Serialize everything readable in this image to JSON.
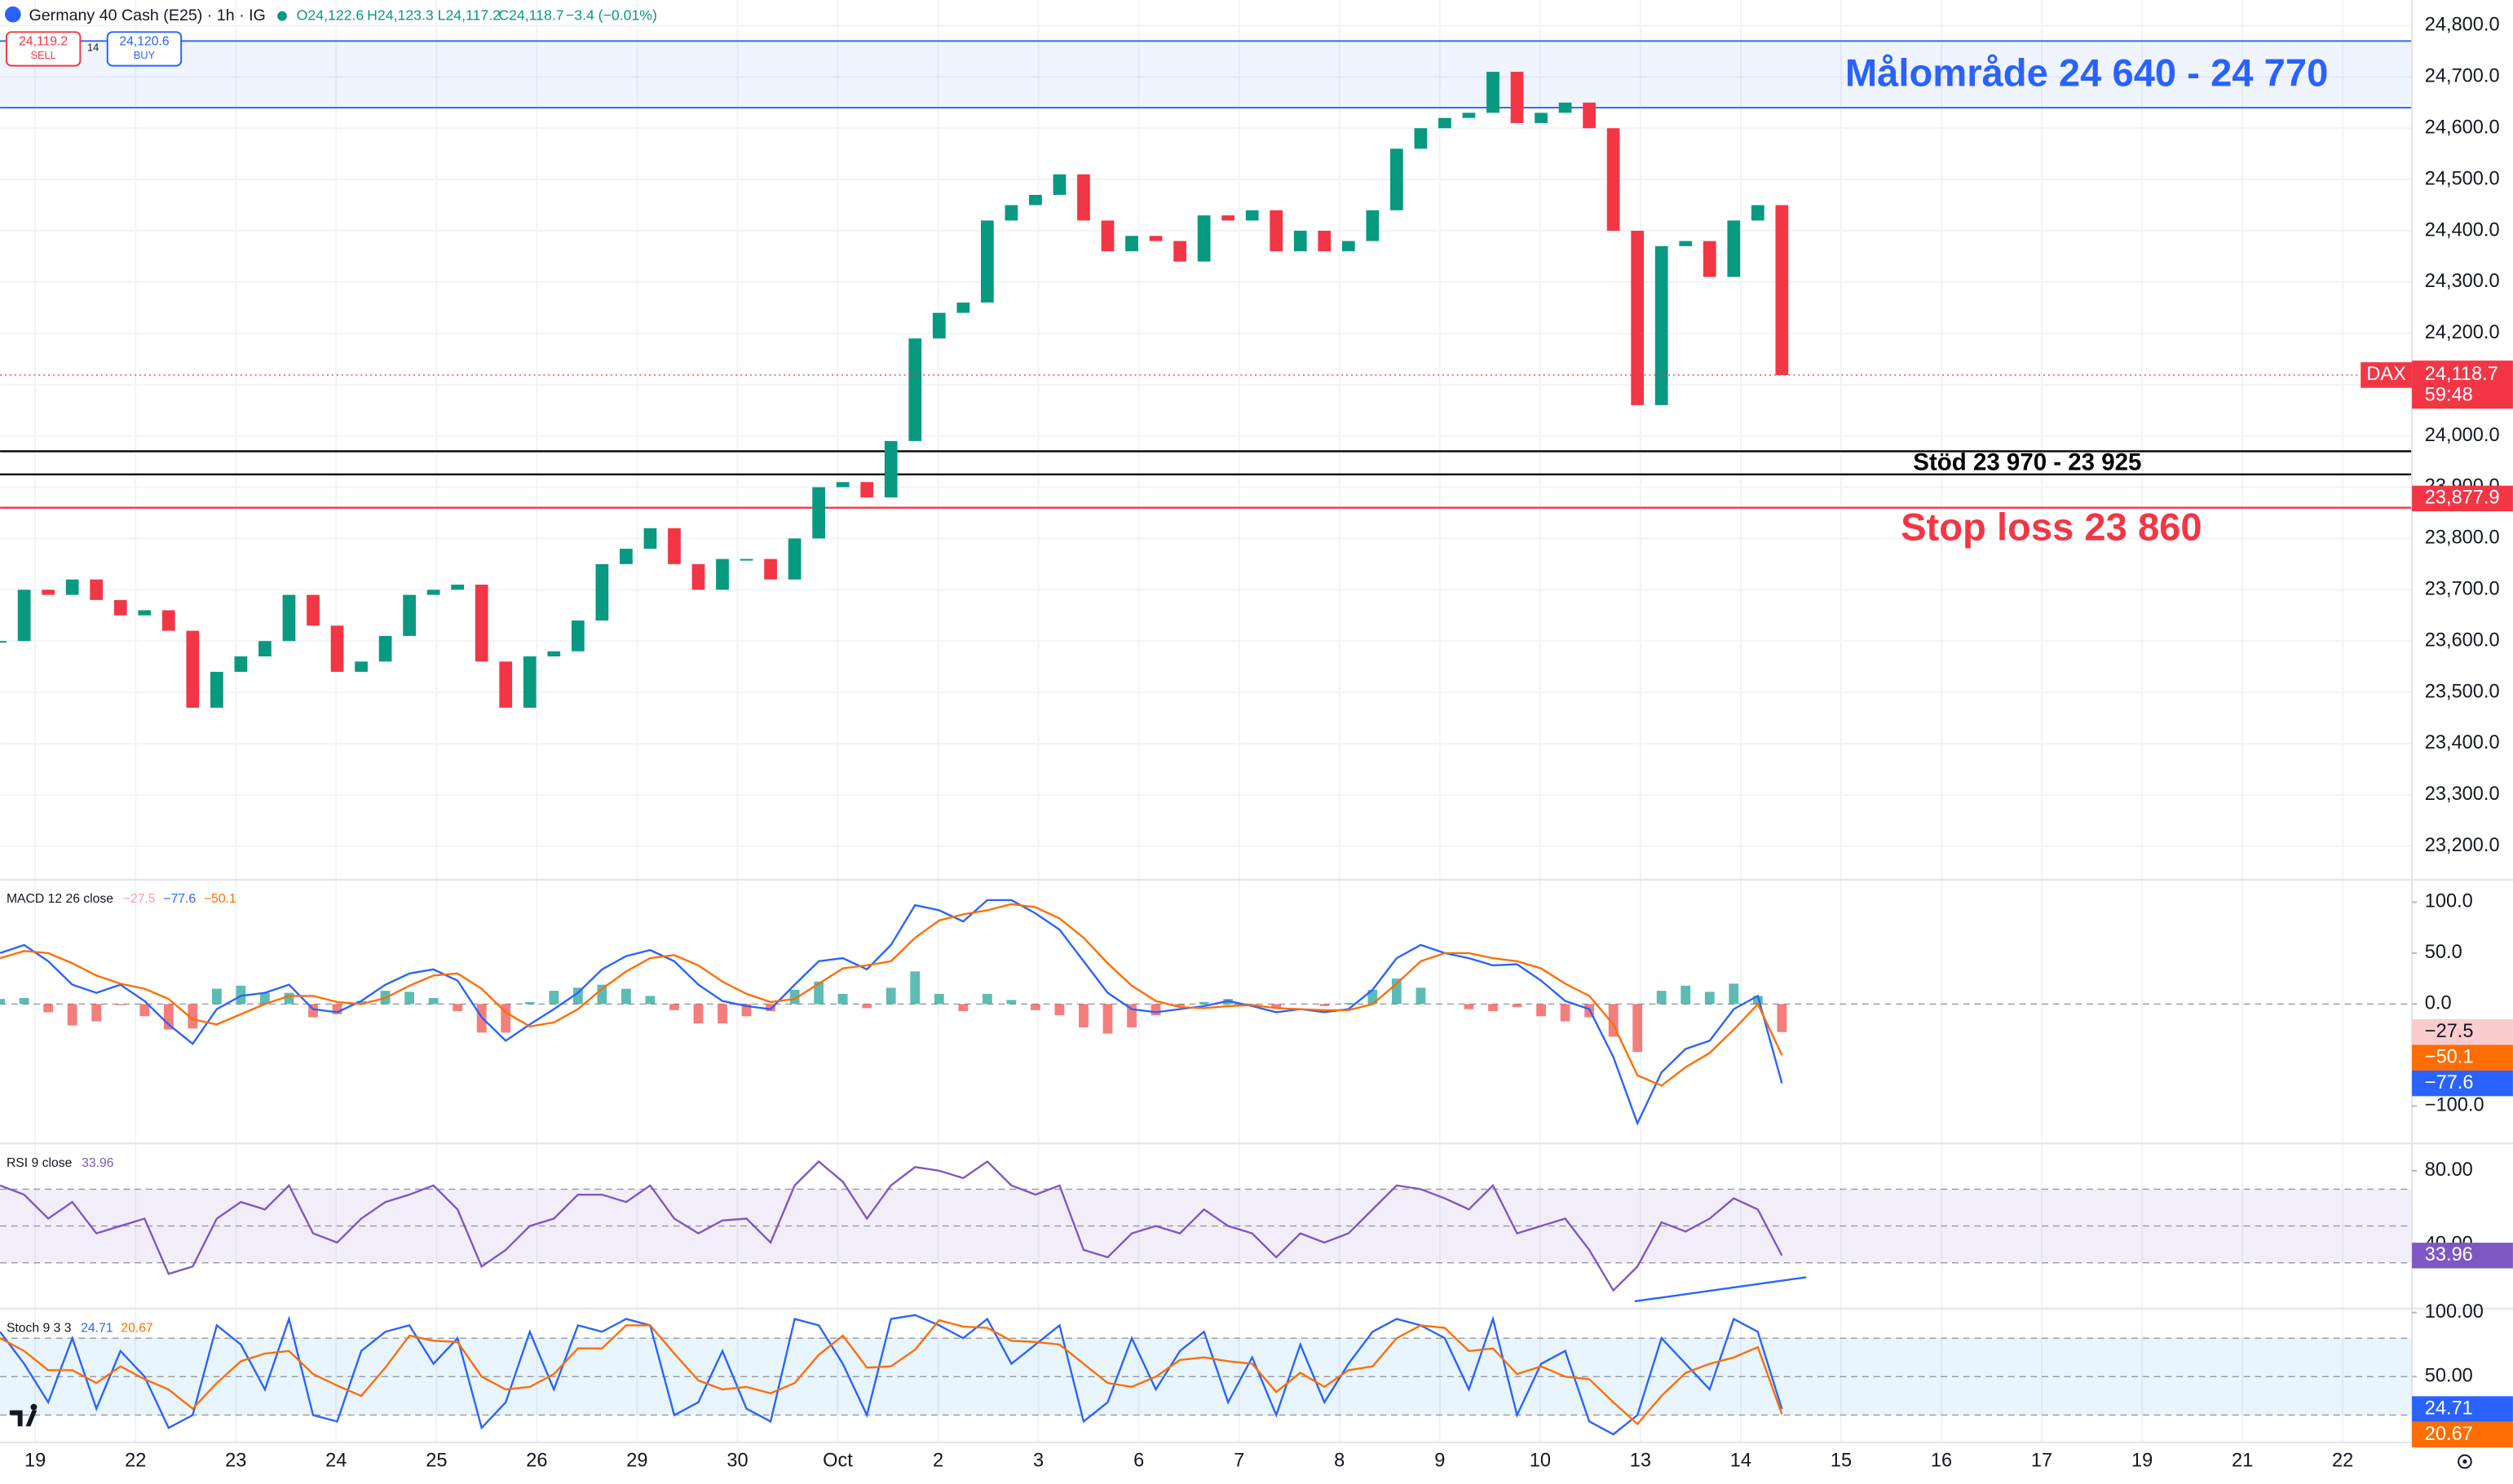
{
  "header": {
    "title": "Germany 40 Cash (E25) · 1h · IG",
    "ohlc": [
      "O24,122.6",
      "H24,123.3",
      "L24,117.2",
      "C24,118.7",
      "−3.4 (−0.01%)"
    ],
    "sell_price": "24,119.2",
    "sell": "SELL",
    "spread": "14",
    "buy_price": "24,120.6",
    "buy": "BUY"
  },
  "chart_data": [
    {
      "type": "candlestick",
      "colors": {
        "up": "#089981",
        "down": "#f23645"
      },
      "grid": true,
      "xlim": [
        -0.35,
        23.69
      ],
      "xticks": [
        {
          "value": 0,
          "label": "19"
        },
        {
          "value": 1,
          "label": "22"
        },
        {
          "value": 2,
          "label": "23"
        },
        {
          "value": 3,
          "label": "24"
        },
        {
          "value": 4,
          "label": "25"
        },
        {
          "value": 5,
          "label": "26"
        },
        {
          "value": 6,
          "label": "29"
        },
        {
          "value": 7,
          "label": "30"
        },
        {
          "value": 8,
          "label": "Oct"
        },
        {
          "value": 9,
          "label": "2"
        },
        {
          "value": 10,
          "label": "3"
        },
        {
          "value": 11,
          "label": "6"
        },
        {
          "value": 12,
          "label": "7"
        },
        {
          "value": 13,
          "label": "8"
        },
        {
          "value": 14,
          "label": "9"
        },
        {
          "value": 15,
          "label": "10"
        },
        {
          "value": 16,
          "label": "13"
        },
        {
          "value": 17,
          "label": "14"
        },
        {
          "value": 18,
          "label": "15"
        },
        {
          "value": 19,
          "label": "16"
        },
        {
          "value": 20,
          "label": "17"
        },
        {
          "value": 21,
          "label": "19"
        },
        {
          "value": 22,
          "label": "21"
        },
        {
          "value": 23,
          "label": "22"
        }
      ],
      "x": [
        -0.35,
        -0.11,
        0.13,
        0.37,
        0.61,
        0.85,
        1.09,
        1.33,
        1.57,
        1.81,
        2.05,
        2.29,
        2.53,
        2.77,
        3.01,
        3.25,
        3.49,
        3.73,
        3.97,
        4.21,
        4.45,
        4.69,
        4.93,
        5.17,
        5.41,
        5.65,
        5.89,
        6.13,
        6.37,
        6.61,
        6.85,
        7.09,
        7.33,
        7.57,
        7.81,
        8.05,
        8.29,
        8.53,
        8.77,
        9.01,
        9.25,
        9.49,
        9.73,
        9.97,
        10.21,
        10.45,
        10.69,
        10.93,
        11.17,
        11.41,
        11.65,
        11.89,
        12.13,
        12.37,
        12.61,
        12.85,
        13.09,
        13.33,
        13.57,
        13.81,
        14.05,
        14.29,
        14.53,
        14.77,
        15.01,
        15.25,
        15.49,
        15.73,
        15.97,
        16.21,
        16.45,
        16.69,
        16.93,
        17.17,
        17.41
      ],
      "values": [
        23600,
        23700,
        23690,
        23720,
        23680,
        23650,
        23660,
        23620,
        23470,
        23540,
        23570,
        23600,
        23690,
        23630,
        23540,
        23560,
        23610,
        23690,
        23700,
        23710,
        23560,
        23470,
        23570,
        23580,
        23640,
        23750,
        23780,
        23820,
        23750,
        23700,
        23760,
        23760,
        23720,
        23800,
        23900,
        23910,
        23880,
        23990,
        24190,
        24240,
        24260,
        24420,
        24450,
        24470,
        24510,
        24420,
        24360,
        24390,
        24380,
        24340,
        24430,
        24420,
        24440,
        24360,
        24400,
        24360,
        24380,
        24440,
        24560,
        24600,
        24620,
        24630,
        24710,
        24610,
        24630,
        24650,
        24600,
        24400,
        24060,
        24370,
        24380,
        24310,
        24420,
        24450,
        24118.7
      ],
      "ylim": [
        23140,
        24850
      ],
      "yticks": [
        {
          "value": 24800,
          "label": "24,800.0"
        },
        {
          "value": 24700,
          "label": "24,700.0"
        },
        {
          "value": 24600,
          "label": "24,600.0"
        },
        {
          "value": 24500,
          "label": "24,500.0"
        },
        {
          "value": 24400,
          "label": "24,400.0"
        },
        {
          "value": 24300,
          "label": "24,300.0"
        },
        {
          "value": 24200,
          "label": "24,200.0"
        },
        {
          "value": 24100,
          "label": "24,100.0"
        },
        {
          "value": 24000,
          "label": "24,000.0"
        },
        {
          "value": 23900,
          "label": "23,900.0"
        },
        {
          "value": 23800,
          "label": "23,800.0"
        },
        {
          "value": 23700,
          "label": "23,700.0"
        },
        {
          "value": 23600,
          "label": "23,600.0"
        },
        {
          "value": 23500,
          "label": "23,500.0"
        },
        {
          "value": 23400,
          "label": "23,400.0"
        },
        {
          "value": 23300,
          "label": "23,300.0"
        },
        {
          "value": 23200,
          "label": "23,200.0"
        }
      ],
      "zones": [
        {
          "label": "Målområde 24 640 - 24 770",
          "values": [
            24640,
            24770
          ],
          "color": "#2962ff"
        }
      ],
      "levels": [
        {
          "label": "Stöd 23 970 - 23 925",
          "values": [
            23970,
            23925
          ],
          "color": "#000000"
        },
        {
          "label": "Stop loss 23 860",
          "values": [
            23860
          ],
          "color": "#f23645"
        }
      ],
      "price_tags": [
        {
          "name": "DAX",
          "value": 24118.7,
          "label": "24,118.7",
          "countdown": "59:48",
          "color": "#f23645"
        },
        {
          "value": 23877.9,
          "label": "23,877.9",
          "color": "#f23645"
        }
      ]
    },
    {
      "type": "macd",
      "title": "MACD 12 26 close",
      "ylim": [
        -134.4,
        120.3
      ],
      "yticks": [
        {
          "value": 100,
          "label": "100.0"
        },
        {
          "value": 50,
          "label": "50.0"
        },
        {
          "value": 0,
          "label": "0.0"
        },
        {
          "value": -100,
          "label": "−100.0"
        }
      ],
      "histogram": {
        "color_up": "#26a69a",
        "color_down": "#ef5350",
        "tag_color": "#fccbcd",
        "last_label": "−27.5",
        "values": [
          5,
          6,
          -8,
          -21,
          -17,
          -1,
          -12,
          -25,
          -24,
          15,
          18,
          11,
          11,
          -13,
          -10,
          3,
          13,
          12,
          6,
          -7,
          -28,
          -28,
          2,
          13,
          16,
          19,
          15,
          8,
          -6,
          -19,
          -19,
          -12,
          -7,
          14,
          22,
          10,
          -4,
          16,
          32,
          10,
          -7,
          10,
          4,
          -6,
          -11,
          -23,
          -29,
          -23,
          -11,
          -2,
          2,
          5,
          -1,
          -4,
          0,
          -2,
          1,
          14,
          25,
          16,
          0,
          -5,
          -7,
          -3,
          -12,
          -17,
          -13,
          -32,
          -47,
          13,
          18,
          12,
          20,
          8,
          -27.5
        ]
      },
      "series": [
        {
          "color": "#2962ff",
          "last_label": "−77.6",
          "values": [
            50,
            58,
            42,
            19,
            11,
            19,
            3,
            -20,
            -39,
            -5,
            8,
            11,
            19,
            -5,
            -8,
            3,
            19,
            30,
            34,
            23,
            -13,
            -36,
            -20,
            -5,
            11,
            34,
            47,
            53,
            42,
            19,
            3,
            -2,
            -5,
            19,
            42,
            45,
            34,
            58,
            97,
            92,
            81,
            102,
            102,
            89,
            73,
            42,
            11,
            -5,
            -8,
            -5,
            -2,
            3,
            -2,
            -8,
            -5,
            -8,
            -5,
            14,
            45,
            58,
            50,
            45,
            38,
            39,
            23,
            3,
            -5,
            -52,
            -117,
            -67,
            -44,
            -36,
            -5,
            8,
            -77.6
          ]
        },
        {
          "color": "#ff6d00",
          "last_label": "−50.1",
          "values": [
            45,
            52,
            50,
            40,
            28,
            20,
            15,
            5,
            -15,
            -20,
            -10,
            0,
            8,
            8,
            2,
            0,
            6,
            18,
            28,
            30,
            15,
            -8,
            -22,
            -18,
            -5,
            15,
            32,
            45,
            48,
            38,
            22,
            10,
            2,
            5,
            20,
            35,
            38,
            42,
            65,
            82,
            88,
            92,
            98,
            95,
            84,
            65,
            40,
            18,
            3,
            -3,
            -4,
            -2,
            -1,
            -4,
            -5,
            -6,
            -6,
            0,
            20,
            42,
            50,
            50,
            45,
            42,
            35,
            20,
            8,
            -20,
            -70,
            -80,
            -62,
            -48,
            -25,
            0,
            -50.1
          ]
        }
      ]
    },
    {
      "type": "rsi",
      "title": "RSI 9 close",
      "ylim": [
        6.5,
        93.5
      ],
      "yticks": [
        {
          "value": 80,
          "label": "80.00"
        },
        {
          "value": 40,
          "label": "40.00"
        }
      ],
      "bands": [
        30,
        70
      ],
      "band_color": "#7e57c2",
      "midline": 50,
      "series": [
        {
          "color": "#7e57c2",
          "last_label": "33.96",
          "values": [
            72,
            67,
            54,
            63,
            46,
            50,
            54,
            24,
            28,
            54,
            63,
            59,
            72,
            46,
            41,
            54,
            63,
            67,
            72,
            59,
            28,
            37,
            50,
            54,
            67,
            67,
            63,
            72,
            54,
            46,
            53,
            54,
            41,
            72,
            85,
            74,
            54,
            72,
            82,
            80,
            76,
            85,
            72,
            67,
            72,
            37,
            33,
            46,
            50,
            46,
            59,
            50,
            46,
            33,
            46,
            41,
            46,
            59,
            72,
            70,
            65,
            59,
            72,
            46,
            50,
            54,
            37,
            15,
            28,
            52,
            47,
            54,
            65,
            59,
            33.96
          ]
        }
      ]
    },
    {
      "type": "stoch",
      "title": "Stoch 9 3 3",
      "ylim": [
        -1.25,
        101.25
      ],
      "yticks": [
        {
          "value": 100,
          "label": "100.00"
        },
        {
          "value": 50,
          "label": "50.00"
        }
      ],
      "bands": [
        20,
        80
      ],
      "band_color": "#2196f3",
      "midline": 50,
      "series": [
        {
          "color": "#2962ff",
          "last_label": "24.71",
          "values": [
            85,
            60,
            30,
            80,
            25,
            70,
            50,
            10,
            20,
            90,
            75,
            40,
            95,
            20,
            15,
            70,
            85,
            90,
            60,
            80,
            10,
            30,
            85,
            40,
            90,
            85,
            95,
            90,
            20,
            30,
            70,
            25,
            15,
            95,
            90,
            60,
            20,
            95,
            98,
            90,
            80,
            95,
            60,
            75,
            90,
            15,
            30,
            80,
            40,
            70,
            85,
            30,
            65,
            20,
            75,
            30,
            60,
            85,
            95,
            90,
            80,
            40,
            95,
            20,
            60,
            70,
            15,
            5,
            20,
            80,
            60,
            40,
            95,
            85,
            24.71
          ]
        },
        {
          "color": "#ff6d00",
          "last_label": "20.67",
          "values": [
            80,
            70,
            55,
            55,
            45,
            58,
            48,
            40,
            25,
            45,
            62,
            68,
            70,
            52,
            43,
            35,
            57,
            82,
            78,
            77,
            50,
            40,
            42,
            52,
            72,
            72,
            90,
            90,
            68,
            47,
            40,
            42,
            37,
            45,
            67,
            82,
            57,
            58,
            71,
            94,
            89,
            88,
            78,
            77,
            75,
            60,
            45,
            42,
            50,
            63,
            65,
            62,
            60,
            38,
            53,
            42,
            55,
            58,
            80,
            90,
            88,
            70,
            72,
            52,
            58,
            50,
            48,
            30,
            13,
            35,
            53,
            60,
            65,
            73,
            20.67
          ]
        }
      ]
    }
  ]
}
